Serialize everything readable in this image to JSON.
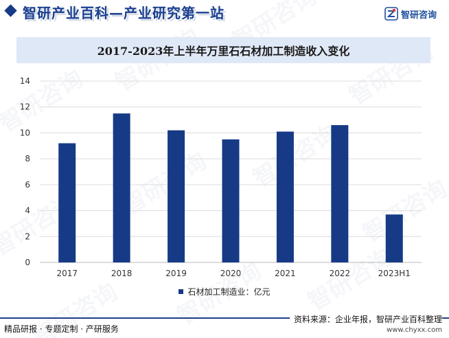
{
  "header": {
    "title": "智研产业百科—产业研究第一站",
    "brand_name": "智研咨询"
  },
  "watermark_text": "智研咨询",
  "legend": {
    "label": "石材加工制造业：亿元"
  },
  "footer": {
    "services": "精品研报 · 专题定制 · 产研服务",
    "source": "资料来源：企业年报，智研产业百科整理",
    "url": "www.chyxx.com"
  },
  "colors": {
    "bar": "#163a86",
    "title_box": "#dfe8f6",
    "grid": "#dcdcdc"
  },
  "chart_data": {
    "type": "bar",
    "title": "2017-2023年上半年万里石石材加工制造收入变化",
    "categories": [
      "2017",
      "2018",
      "2019",
      "2020",
      "2021",
      "2022",
      "2023H1"
    ],
    "series": [
      {
        "name": "石材加工制造业：亿元",
        "values": [
          9.2,
          11.5,
          10.2,
          9.5,
          10.1,
          10.6,
          3.7
        ]
      }
    ],
    "ylim": [
      0,
      14
    ],
    "yticks": [
      0,
      2,
      4,
      6,
      8,
      10,
      12,
      14
    ],
    "grid": true,
    "legend_position": "bottom"
  }
}
